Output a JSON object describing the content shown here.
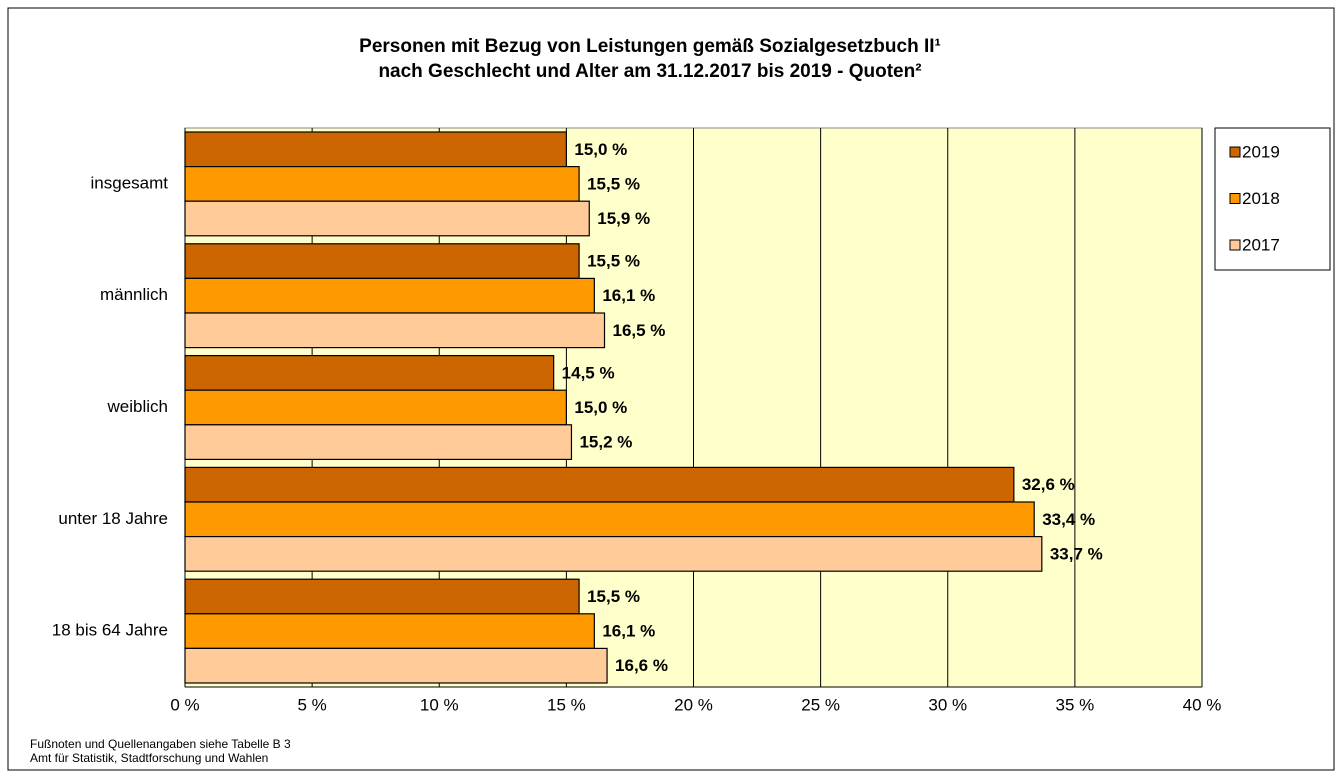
{
  "chart_data": {
    "type": "bar",
    "orientation": "horizontal",
    "title": [
      "Personen mit Bezug von Leistungen gemäß Sozialgesetzbuch II¹",
      "nach Geschlecht und Alter am 31.12.2017 bis 2019 - Quoten²"
    ],
    "categories": [
      "insgesamt",
      "männlich",
      "weiblich",
      "unter 18 Jahre",
      "18 bis 64 Jahre"
    ],
    "series": [
      {
        "name": "2019",
        "color": "#cc6600",
        "values": [
          15.0,
          15.5,
          14.5,
          32.6,
          15.5
        ],
        "value_labels": [
          "15,0 %",
          "15,5 %",
          "14,5 %",
          "32,6 %",
          "15,5 %"
        ]
      },
      {
        "name": "2018",
        "color": "#ff9900",
        "values": [
          15.5,
          16.1,
          15.0,
          33.4,
          16.1
        ],
        "value_labels": [
          "15,5 %",
          "16,1 %",
          "15,0 %",
          "33,4 %",
          "16,1 %"
        ]
      },
      {
        "name": "2017",
        "color": "#ffcc99",
        "values": [
          15.9,
          16.5,
          15.2,
          33.7,
          16.6
        ],
        "value_labels": [
          "15,9 %",
          "16,5 %",
          "15,2 %",
          "33,7 %",
          "16,6 %"
        ]
      }
    ],
    "xlim": [
      0,
      40
    ],
    "xticks": [
      {
        "value": 0,
        "label": "0 %"
      },
      {
        "value": 5,
        "label": "5 %"
      },
      {
        "value": 10,
        "label": "10 %"
      },
      {
        "value": 15,
        "label": "15 %"
      },
      {
        "value": 20,
        "label": "20 %"
      },
      {
        "value": 25,
        "label": "25 %"
      },
      {
        "value": 30,
        "label": "30 %"
      },
      {
        "value": 35,
        "label": "35 %"
      },
      {
        "value": 40,
        "label": "40 %"
      }
    ],
    "grid": true,
    "plot_background": "#ffffcc",
    "legend": "right",
    "footnotes": [
      "Fußnoten und Quellenangaben siehe Tabelle B 3",
      "Amt für Statistik, Stadtforschung und Wahlen"
    ]
  }
}
